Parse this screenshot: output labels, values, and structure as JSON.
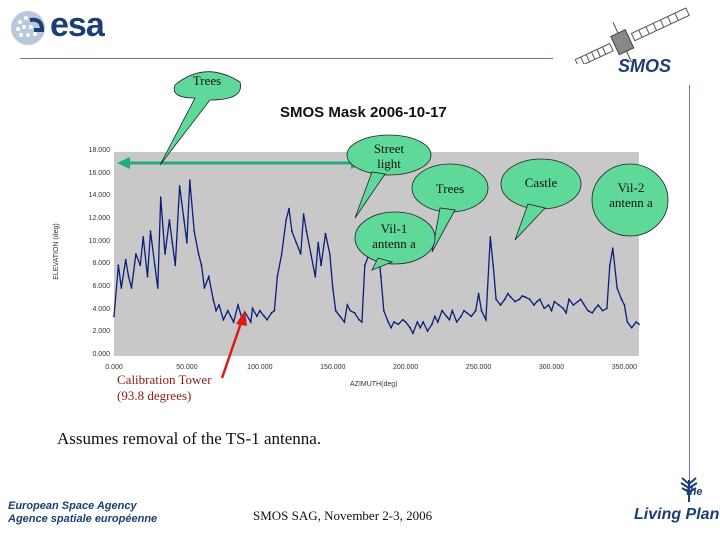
{
  "header": {
    "logo_left": {
      "text": "esa",
      "icon": "esa-logo-icon"
    },
    "logo_right": {
      "text": "SMOS",
      "icon": "smos-satellite-icon"
    }
  },
  "chart_data": {
    "type": "line",
    "title": "SMOS Mask 2006-10-17",
    "xlabel": "AZIMUTH(deg)",
    "ylabel": "ELEVATION (deg)",
    "xlim": [
      0,
      360
    ],
    "ylim": [
      0,
      18
    ],
    "x_ticks": [
      "0.000",
      "50.000",
      "100.000",
      "150.000",
      "200.000",
      "250.000",
      "300.000",
      "350.000"
    ],
    "y_ticks": [
      "0.000",
      "2.000",
      "4.000",
      "6.000",
      "8.000",
      "10.000",
      "12.000",
      "14.000",
      "16.000",
      "18.000"
    ],
    "x_tick_values": [
      0,
      50,
      100,
      150,
      200,
      250,
      300,
      350
    ],
    "y_tick_values": [
      0,
      2,
      4,
      6,
      8,
      10,
      12,
      14,
      16,
      18
    ],
    "series": [
      {
        "color": "#0b1e7a",
        "x": [
          0,
          3,
          5,
          8,
          10,
          12,
          15,
          18,
          20,
          23,
          25,
          28,
          30,
          32,
          35,
          38,
          40,
          42,
          45,
          48,
          50,
          52,
          55,
          58,
          60,
          62,
          65,
          68,
          70,
          72,
          75,
          78,
          80,
          82,
          85,
          88,
          90,
          93.8,
          95,
          98,
          100,
          103,
          105,
          108,
          110,
          112,
          115,
          118,
          120,
          122,
          125,
          128,
          130,
          132,
          135,
          138,
          140,
          142,
          145,
          148,
          150,
          152,
          155,
          158,
          160,
          162,
          165,
          168,
          170,
          172,
          175,
          178,
          180,
          183,
          185,
          188,
          190,
          192,
          195,
          198,
          200,
          203,
          205,
          208,
          210,
          212,
          215,
          218,
          220,
          222,
          225,
          228,
          230,
          232,
          235,
          238,
          240,
          242,
          245,
          248,
          250,
          252,
          255,
          258,
          260,
          262,
          265,
          268,
          270,
          272,
          275,
          278,
          280,
          282,
          285,
          288,
          290,
          292,
          295,
          298,
          300,
          302,
          305,
          308,
          310,
          312,
          315,
          318,
          320,
          322,
          325,
          328,
          330,
          332,
          335,
          338,
          340,
          342,
          345,
          348,
          350,
          352,
          355,
          358,
          360
        ],
        "y": [
          3.5,
          8,
          6,
          8.5,
          7,
          6,
          9,
          8,
          10.5,
          7,
          11,
          8,
          6,
          14,
          9,
          12,
          10,
          8,
          15,
          12,
          10,
          15.5,
          11,
          9,
          8,
          6,
          7,
          5,
          4,
          4.5,
          3.2,
          4,
          3.5,
          3,
          4.5,
          3.2,
          3.8,
          3,
          4.2,
          3.5,
          4,
          3.5,
          3.2,
          3.8,
          4,
          7,
          9,
          12,
          13,
          11,
          10,
          9,
          12.5,
          11,
          9,
          7,
          10,
          8,
          10.8,
          9,
          6,
          4,
          3.5,
          3,
          4.5,
          4,
          3.8,
          3.2,
          3,
          8,
          9,
          10,
          11,
          7,
          4,
          3,
          2.5,
          3,
          2.8,
          3.2,
          3,
          2.5,
          2,
          3,
          2.5,
          3,
          2.2,
          2.8,
          3.5,
          3,
          4,
          3.5,
          3.2,
          4,
          3,
          3.5,
          4,
          3.8,
          3.5,
          4,
          5.5,
          4,
          3.2,
          10.5,
          8,
          5,
          4.5,
          5,
          5.5,
          5.2,
          4.8,
          5,
          5.3,
          5.2,
          5,
          4.5,
          4.8,
          5,
          4.2,
          4.5,
          4,
          4.8,
          4.5,
          4.2,
          3.8,
          5,
          4.5,
          4.8,
          5,
          4.6,
          4,
          3.8,
          4.2,
          4.5,
          4,
          4.2,
          8,
          9.5,
          6,
          5,
          4.5,
          3,
          2.5,
          3,
          2.8
        ]
      }
    ],
    "annotations": {
      "bubbles": [
        {
          "id": "trees-top",
          "text": "Trees"
        },
        {
          "id": "street-light",
          "text": "Street light"
        },
        {
          "id": "trees-right",
          "text": "Trees"
        },
        {
          "id": "vil1",
          "text": "Vil-1 antenn a"
        },
        {
          "id": "castle",
          "text": "Castle"
        },
        {
          "id": "vil2",
          "text": "Vil-2 antenn a"
        }
      ],
      "calibration": {
        "text_line1": "Calibration Tower",
        "text_line2": "(93.8 degrees)",
        "color": "#e01818"
      },
      "double_arrow_color": "#22aa88"
    }
  },
  "caption": "Assumes removal of the TS-1 antenna.",
  "footer": {
    "agency_line1": "European Space Agency",
    "agency_line2": "Agence spatiale européenne",
    "event": "SMOS SAG, November 2-3, 2006",
    "living_the": "the",
    "living_planet": "Living Planet",
    "living_icon": "living-planet-leaf-icon"
  }
}
